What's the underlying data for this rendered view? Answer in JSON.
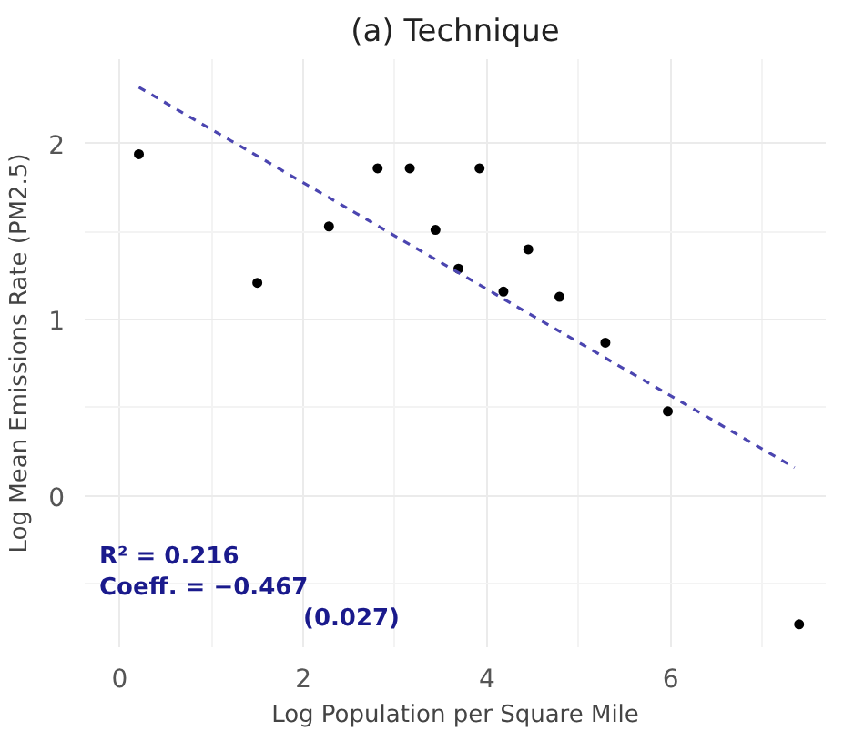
{
  "chart_data": {
    "type": "scatter",
    "title": "(a) Technique",
    "xlabel": "Log Population per Square Mile",
    "ylabel": "Log Mean Emissions Rate (PM2.5)",
    "series": [
      {
        "color": "#000000",
        "marker": "circle",
        "x": [
          0.21,
          1.5,
          2.28,
          2.81,
          3.16,
          3.44,
          3.69,
          3.92,
          4.18,
          4.45,
          4.79,
          5.29,
          5.97,
          7.4
        ],
        "values": [
          1.94,
          1.21,
          1.53,
          1.86,
          1.86,
          1.51,
          1.29,
          1.86,
          1.16,
          1.4,
          1.13,
          0.87,
          0.48,
          -0.73
        ]
      },
      {
        "type": "line",
        "color": "#4b45b0",
        "line_style": "dashed",
        "x": [
          0.21,
          7.35
        ],
        "values": [
          2.32,
          0.16
        ]
      }
    ],
    "annotations": [
      "R² = 0.216",
      "Coeff. = −0.467",
      "(0.027)"
    ],
    "xlim": [
      -0.38,
      7.69
    ],
    "ylim": [
      -0.86,
      2.48
    ],
    "xticks": [
      0,
      2,
      4,
      6
    ],
    "yticks": [
      0,
      1,
      2
    ],
    "grid": true
  }
}
